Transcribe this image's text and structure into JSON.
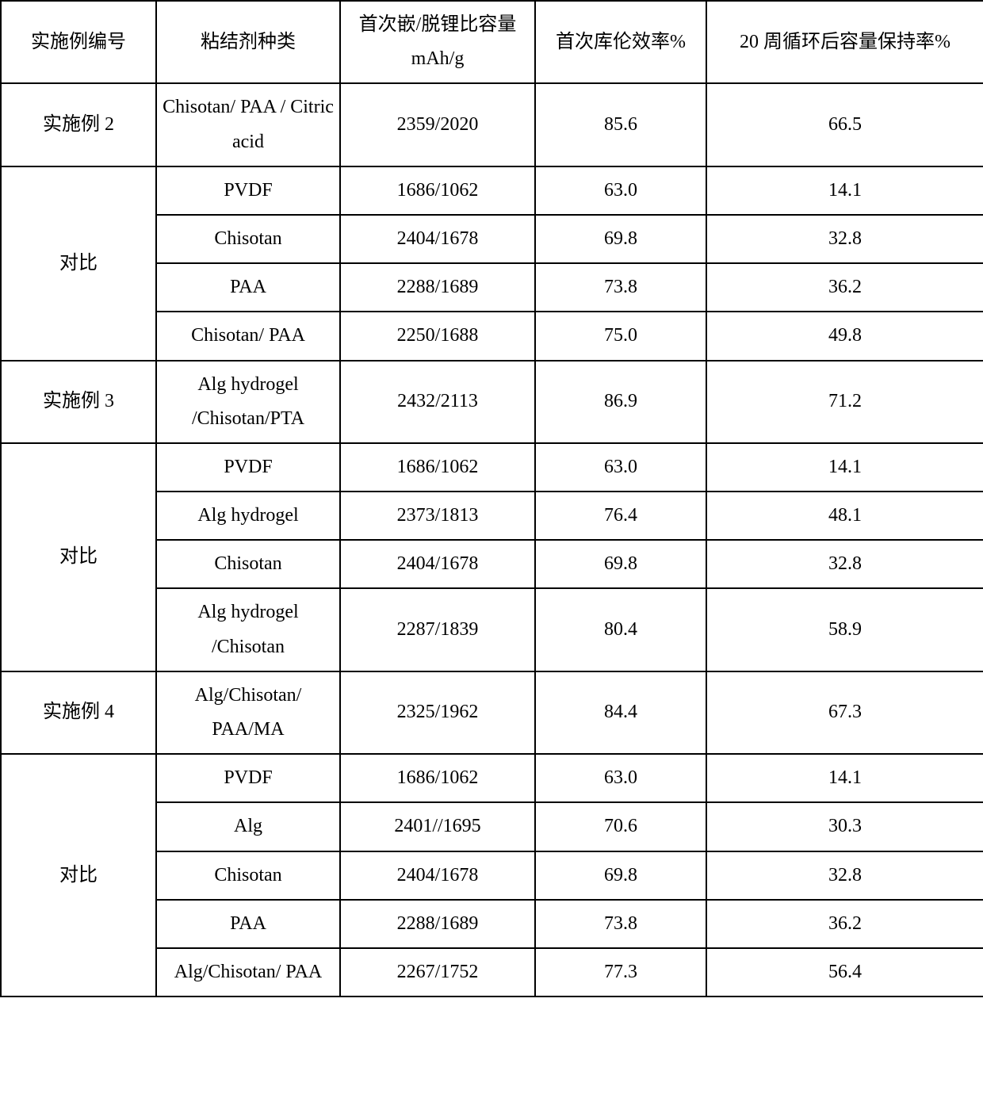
{
  "headers": {
    "c0": "实施例编号",
    "c1": "粘结剂种类",
    "c2": "首次嵌/脱锂比容量 mAh/g",
    "c3": "首次库伦效率%",
    "c4": "20 周循环后容量保持率%"
  },
  "sections": [
    {
      "label": "实施例 2",
      "rows": [
        {
          "binder": "Chisotan/ PAA / Citric acid",
          "capacity": "2359/2020",
          "eff": "85.6",
          "ret": "66.5"
        }
      ]
    },
    {
      "label": "对比",
      "rows": [
        {
          "binder": "PVDF",
          "capacity": "1686/1062",
          "eff": "63.0",
          "ret": "14.1"
        },
        {
          "binder": "Chisotan",
          "capacity": "2404/1678",
          "eff": "69.8",
          "ret": "32.8"
        },
        {
          "binder": "PAA",
          "capacity": "2288/1689",
          "eff": "73.8",
          "ret": "36.2"
        },
        {
          "binder": "Chisotan/ PAA",
          "capacity": "2250/1688",
          "eff": "75.0",
          "ret": "49.8"
        }
      ]
    },
    {
      "label": "实施例 3",
      "rows": [
        {
          "binder": "Alg hydrogel /Chisotan/PTA",
          "capacity": "2432/2113",
          "eff": "86.9",
          "ret": "71.2"
        }
      ]
    },
    {
      "label": "对比",
      "rows": [
        {
          "binder": "PVDF",
          "capacity": "1686/1062",
          "eff": "63.0",
          "ret": "14.1"
        },
        {
          "binder": "Alg hydrogel",
          "capacity": "2373/1813",
          "eff": "76.4",
          "ret": "48.1"
        },
        {
          "binder": "Chisotan",
          "capacity": "2404/1678",
          "eff": "69.8",
          "ret": "32.8"
        },
        {
          "binder": "Alg hydrogel /Chisotan",
          "capacity": "2287/1839",
          "eff": "80.4",
          "ret": "58.9"
        }
      ]
    },
    {
      "label": "实施例 4",
      "rows": [
        {
          "binder": "Alg/Chisotan/ PAA/MA",
          "capacity": "2325/1962",
          "eff": "84.4",
          "ret": "67.3"
        }
      ]
    },
    {
      "label": "对比",
      "rows": [
        {
          "binder": "PVDF",
          "capacity": "1686/1062",
          "eff": "63.0",
          "ret": "14.1"
        },
        {
          "binder": "Alg",
          "capacity": "2401//1695",
          "eff": "70.6",
          "ret": "30.3"
        },
        {
          "binder": "Chisotan",
          "capacity": "2404/1678",
          "eff": "69.8",
          "ret": "32.8"
        },
        {
          "binder": "PAA",
          "capacity": "2288/1689",
          "eff": "73.8",
          "ret": "36.2"
        },
        {
          "binder": "Alg/Chisotan/ PAA",
          "capacity": "2267/1752",
          "eff": "77.3",
          "ret": "56.4"
        }
      ]
    }
  ]
}
